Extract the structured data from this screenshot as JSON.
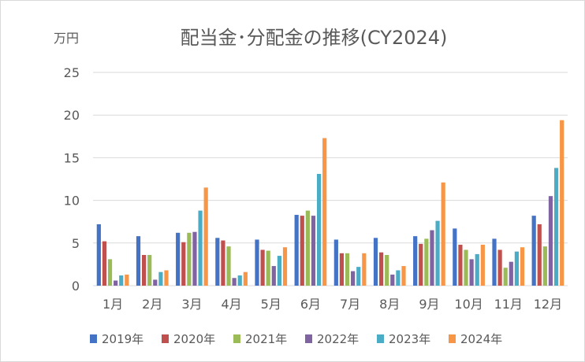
{
  "chart_data": {
    "type": "bar",
    "title": "配当金･分配金の推移(CY2024)",
    "unit_label": "万円",
    "xlabel": "",
    "ylabel": "",
    "ylim": [
      0,
      25
    ],
    "yticks": [
      "0",
      "5",
      "10",
      "15",
      "20",
      "25"
    ],
    "grid": true,
    "legend_position": "bottom",
    "categories": [
      "1月",
      "2月",
      "3月",
      "4月",
      "5月",
      "6月",
      "7月",
      "8月",
      "9月",
      "10月",
      "11月",
      "12月"
    ],
    "series": [
      {
        "name": "2019年",
        "color": "#4472c4",
        "values": [
          7.2,
          5.8,
          6.2,
          5.6,
          5.4,
          8.3,
          5.4,
          5.6,
          5.8,
          6.7,
          5.5,
          8.2
        ]
      },
      {
        "name": "2020年",
        "color": "#c0504d",
        "values": [
          5.2,
          3.6,
          5.1,
          5.3,
          4.2,
          8.2,
          3.8,
          3.9,
          4.9,
          4.8,
          4.2,
          7.2
        ]
      },
      {
        "name": "2021年",
        "color": "#9bbb59",
        "values": [
          3.1,
          3.6,
          6.2,
          4.6,
          4.1,
          8.8,
          3.8,
          3.6,
          5.5,
          4.2,
          2.1,
          4.6
        ]
      },
      {
        "name": "2022年",
        "color": "#8064a2",
        "values": [
          0.6,
          0.7,
          6.3,
          0.9,
          2.3,
          8.2,
          1.7,
          1.3,
          6.5,
          3.1,
          2.8,
          10.5
        ]
      },
      {
        "name": "2023年",
        "color": "#4bacc6",
        "values": [
          1.2,
          1.6,
          8.8,
          1.2,
          3.5,
          13.1,
          2.2,
          1.8,
          7.6,
          3.7,
          4.0,
          13.8
        ]
      },
      {
        "name": "2024年",
        "color": "#f79646",
        "values": [
          1.3,
          1.8,
          11.5,
          1.6,
          4.5,
          17.3,
          3.8,
          2.3,
          12.1,
          4.8,
          4.5,
          19.4
        ]
      }
    ],
    "gridline_color": "#d9d9d9"
  }
}
